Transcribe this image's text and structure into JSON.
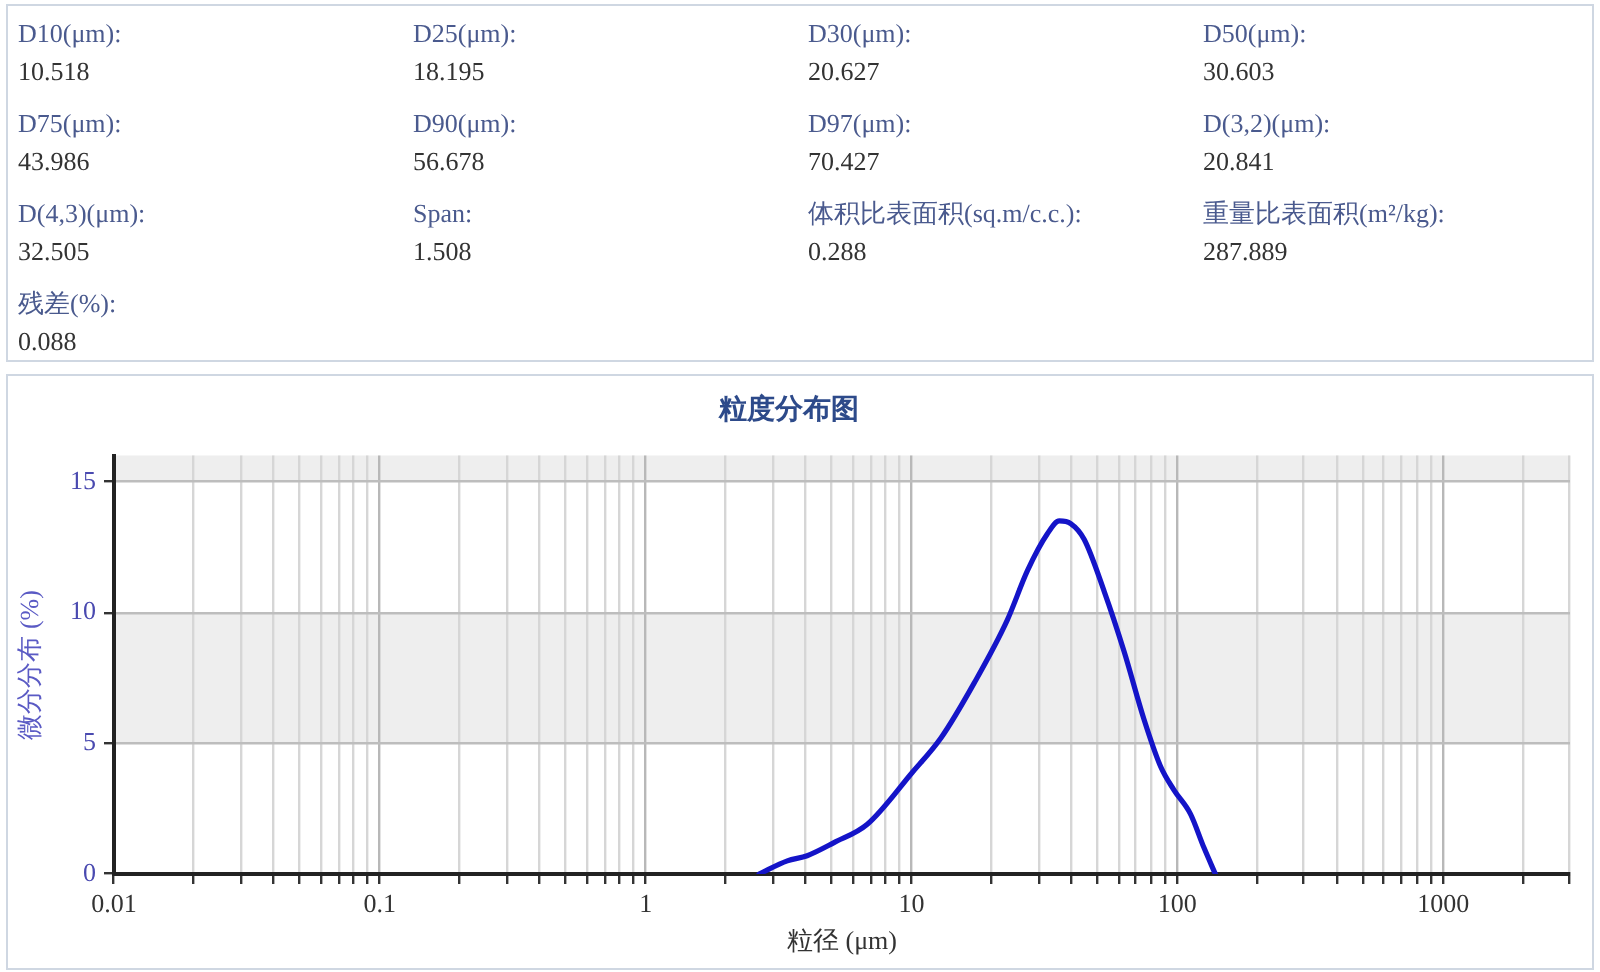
{
  "chart_data": [
    {
      "type": "other",
      "annotations": [
        "D10(μm):",
        "10.518",
        "D25(μm):",
        "18.195",
        "D30(μm):",
        "20.627",
        "D50(μm):",
        "30.603",
        "D75(μm):",
        "43.986",
        "D90(μm):",
        "56.678",
        "D97(μm):",
        "70.427",
        "D(3,2)(μm):",
        "20.841",
        "D(4,3)(μm):",
        "32.505",
        "Span:",
        "1.508",
        "体积比表面积(sq.m/c.c.):",
        "0.288",
        "重量比表面积(m²/kg):",
        "287.889",
        "残差(%):",
        "0.088"
      ]
    },
    {
      "type": "line",
      "title": "粒度分布图",
      "xlabel": "粒径 (μm)",
      "ylabel": "微分分布 (%)",
      "x": [
        2.67,
        3.41,
        4.05,
        5.11,
        6.82,
        10.1,
        12.9,
        17.2,
        22.9,
        27.3,
        32.4,
        36.0,
        39.7,
        44.6,
        53.1,
        63.1,
        75.0,
        86.6,
        97.3,
        112,
        126,
        139
      ],
      "values": [
        0,
        0.5,
        0.7,
        1.2,
        1.9,
        3.9,
        5.2,
        7.3,
        9.7,
        11.6,
        13.0,
        13.5,
        13.4,
        12.8,
        10.8,
        8.5,
        5.9,
        4.1,
        3.2,
        2.3,
        1.0,
        0
      ],
      "color": "#1414c8",
      "log": "x",
      "xlim": [
        0.01,
        3000
      ],
      "xticks": [
        0.01,
        {
          "value": 0.02,
          "label": null
        },
        {
          "value": 0.03,
          "label": null
        },
        {
          "value": 0.04,
          "label": null
        },
        {
          "value": 0.05,
          "label": null
        },
        {
          "value": 0.06,
          "label": null
        },
        {
          "value": 0.07,
          "label": null
        },
        {
          "value": 0.08,
          "label": null
        },
        {
          "value": 0.09,
          "label": null
        },
        0.1,
        {
          "value": 0.2,
          "label": null
        },
        {
          "value": 0.3,
          "label": null
        },
        {
          "value": 0.4,
          "label": null
        },
        {
          "value": 0.5,
          "label": null
        },
        {
          "value": 0.6,
          "label": null
        },
        {
          "value": 0.7,
          "label": null
        },
        {
          "value": 0.8,
          "label": null
        },
        {
          "value": 0.9,
          "label": null
        },
        1,
        {
          "value": 2,
          "label": null
        },
        {
          "value": 3,
          "label": null
        },
        {
          "value": 4,
          "label": null
        },
        {
          "value": 5,
          "label": null
        },
        {
          "value": 6,
          "label": null
        },
        {
          "value": 7,
          "label": null
        },
        {
          "value": 8,
          "label": null
        },
        {
          "value": 9,
          "label": null
        },
        10,
        {
          "value": 20,
          "label": null
        },
        {
          "value": 30,
          "label": null
        },
        {
          "value": 40,
          "label": null
        },
        {
          "value": 50,
          "label": null
        },
        {
          "value": 60,
          "label": null
        },
        {
          "value": 70,
          "label": null
        },
        {
          "value": 80,
          "label": null
        },
        {
          "value": 90,
          "label": null
        },
        100,
        {
          "value": 200,
          "label": null
        },
        {
          "value": 300,
          "label": null
        },
        {
          "value": 400,
          "label": null
        },
        {
          "value": 500,
          "label": null
        },
        {
          "value": 600,
          "label": null
        },
        {
          "value": 700,
          "label": null
        },
        {
          "value": 800,
          "label": null
        },
        {
          "value": 900,
          "label": null
        },
        1000,
        {
          "value": 2000,
          "label": null
        },
        {
          "value": 3000,
          "label": null
        }
      ],
      "ylim": [
        0,
        16
      ],
      "yticks": [
        0,
        5,
        10,
        15
      ],
      "bands": [
        {
          "axis": "y",
          "from": 5,
          "to": 10,
          "color": "#eeeeee"
        },
        {
          "axis": "y",
          "from": 15,
          "to": 16,
          "color": "#eeeeee"
        }
      ],
      "grid": true,
      "legend": false,
      "marker": "none",
      "line_style": "solid"
    }
  ]
}
